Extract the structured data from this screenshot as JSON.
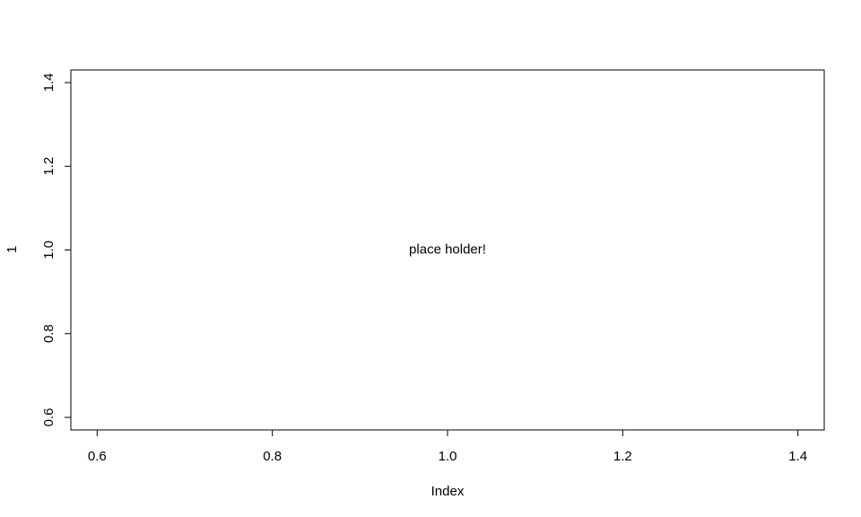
{
  "chart_data": {
    "type": "scatter",
    "title": "",
    "xlabel": "Index",
    "ylabel": "1",
    "xlim": [
      0.57,
      1.43
    ],
    "ylim": [
      0.57,
      1.43
    ],
    "x_ticks": [
      "0.6",
      "0.8",
      "1.0",
      "1.2",
      "1.4"
    ],
    "y_ticks": [
      "0.6",
      "0.8",
      "1.0",
      "1.2",
      "1.4"
    ],
    "grid": false,
    "series": [
      {
        "x": [],
        "y": []
      }
    ],
    "annotations": [
      {
        "text": "place holder!",
        "x": 1.0,
        "y": 1.0
      }
    ]
  }
}
